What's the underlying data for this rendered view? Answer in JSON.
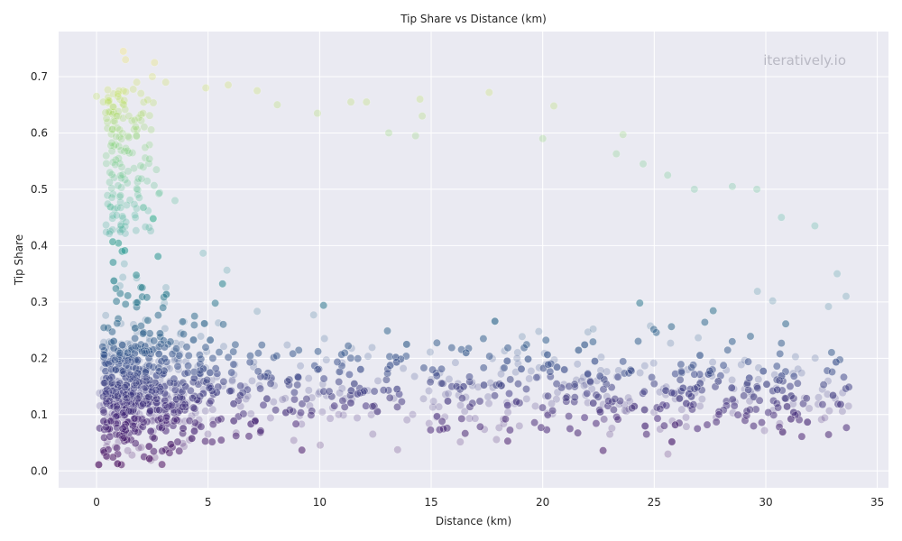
{
  "chart_data": {
    "type": "scatter",
    "title": "Tip Share vs Distance (km)",
    "xlabel": "Distance (km)",
    "ylabel": "Tip Share",
    "xlim": [
      -1.7,
      35.5
    ],
    "ylim": [
      -0.03,
      0.78
    ],
    "xticks": [
      0,
      5,
      10,
      15,
      20,
      25,
      30,
      35
    ],
    "yticks": [
      0.0,
      0.1,
      0.2,
      0.3,
      0.4,
      0.5,
      0.6,
      0.7
    ],
    "grid": true,
    "style": "seaborn-darkgrid",
    "colormap": "viridis",
    "color_by": "y",
    "marker_alpha": 0.22,
    "point_summary": {
      "x_range": [
        0,
        33.8
      ],
      "dense_band_y": [
        0.03,
        0.28
      ],
      "outlier_max_y": 0.745
    },
    "highlight_points": [
      {
        "x": 1.2,
        "y": 0.745
      },
      {
        "x": 1.3,
        "y": 0.73
      },
      {
        "x": 2.6,
        "y": 0.725
      },
      {
        "x": 2.5,
        "y": 0.7
      },
      {
        "x": 1.8,
        "y": 0.69
      },
      {
        "x": 3.1,
        "y": 0.69
      },
      {
        "x": 0.0,
        "y": 0.665
      },
      {
        "x": 0.3,
        "y": 0.655
      },
      {
        "x": 4.9,
        "y": 0.68
      },
      {
        "x": 5.9,
        "y": 0.685
      },
      {
        "x": 7.2,
        "y": 0.675
      },
      {
        "x": 8.1,
        "y": 0.65
      },
      {
        "x": 9.9,
        "y": 0.635
      },
      {
        "x": 11.4,
        "y": 0.655
      },
      {
        "x": 12.1,
        "y": 0.655
      },
      {
        "x": 14.5,
        "y": 0.66
      },
      {
        "x": 14.6,
        "y": 0.63
      },
      {
        "x": 17.6,
        "y": 0.672
      },
      {
        "x": 20.5,
        "y": 0.648
      },
      {
        "x": 20.0,
        "y": 0.59
      },
      {
        "x": 13.1,
        "y": 0.6
      },
      {
        "x": 14.3,
        "y": 0.595
      },
      {
        "x": 23.6,
        "y": 0.597
      },
      {
        "x": 23.3,
        "y": 0.563
      },
      {
        "x": 24.5,
        "y": 0.545
      },
      {
        "x": 25.6,
        "y": 0.525
      },
      {
        "x": 26.8,
        "y": 0.5
      },
      {
        "x": 28.5,
        "y": 0.505
      },
      {
        "x": 29.6,
        "y": 0.5
      },
      {
        "x": 30.7,
        "y": 0.45
      },
      {
        "x": 32.2,
        "y": 0.435
      },
      {
        "x": 33.2,
        "y": 0.35
      },
      {
        "x": 33.6,
        "y": 0.31
      }
    ]
  },
  "watermark": "iteratively.io"
}
